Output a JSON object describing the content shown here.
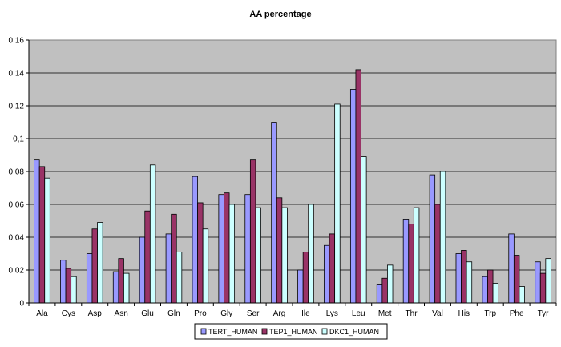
{
  "chart_data": {
    "type": "bar",
    "title": "AA percentage",
    "xlabel": "",
    "ylabel": "",
    "ylim": [
      0,
      0.16
    ],
    "yticks": [
      "0",
      "0,02",
      "0,04",
      "0,06",
      "0,08",
      "0,1",
      "0,12",
      "0,14",
      "0,16"
    ],
    "ytick_values": [
      0,
      0.02,
      0.04,
      0.06,
      0.08,
      0.1,
      0.12,
      0.14,
      0.16
    ],
    "grid": true,
    "legend_position": "bottom",
    "plot_background": "#c0c0c0",
    "categories": [
      "Ala",
      "Cys",
      "Asp",
      "Asn",
      "Glu",
      "Gln",
      "Pro",
      "Gly",
      "Ser",
      "Arg",
      "Ile",
      "Lys",
      "Leu",
      "Met",
      "Thr",
      "Val",
      "His",
      "Trp",
      "Phe",
      "Tyr"
    ],
    "series": [
      {
        "name": "TERT_HUMAN",
        "color": "#9999ff",
        "values": [
          0.087,
          0.026,
          0.03,
          0.019,
          0.04,
          0.042,
          0.077,
          0.066,
          0.066,
          0.11,
          0.02,
          0.035,
          0.13,
          0.011,
          0.051,
          0.078,
          0.03,
          0.016,
          0.042,
          0.025
        ]
      },
      {
        "name": "TEP1_HUMAN",
        "color": "#993366",
        "values": [
          0.083,
          0.021,
          0.045,
          0.027,
          0.056,
          0.054,
          0.061,
          0.067,
          0.087,
          0.064,
          0.031,
          0.042,
          0.142,
          0.015,
          0.048,
          0.06,
          0.032,
          0.02,
          0.029,
          0.018
        ]
      },
      {
        "name": "DKC1_HUMAN",
        "color": "#ccffff",
        "values": [
          0.076,
          0.016,
          0.049,
          0.018,
          0.084,
          0.031,
          0.045,
          0.06,
          0.058,
          0.058,
          0.06,
          0.121,
          0.089,
          0.023,
          0.058,
          0.08,
          0.025,
          0.012,
          0.01,
          0.027
        ]
      }
    ]
  }
}
